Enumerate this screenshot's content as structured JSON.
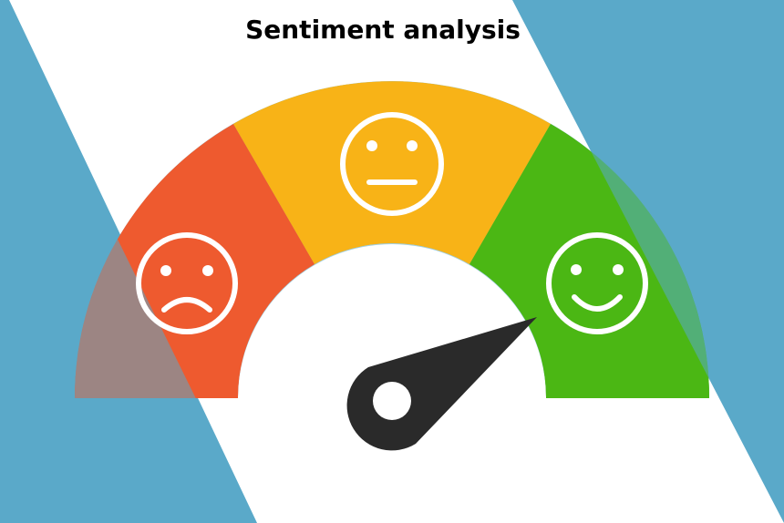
{
  "title": "Sentiment analysis",
  "colors": {
    "background_blue": "#5aa9c9",
    "negative": "#ee5a2f",
    "neutral": "#f8b317",
    "positive": "#4bb714",
    "needle": "#2a2a2a",
    "face_stroke": "#ffffff"
  },
  "gauge": {
    "segments": [
      {
        "name": "negative",
        "face": "sad-face-icon"
      },
      {
        "name": "neutral",
        "face": "neutral-face-icon"
      },
      {
        "name": "positive",
        "face": "happy-face-icon"
      }
    ],
    "needle_direction": "pointing toward positive (right, upward)"
  }
}
